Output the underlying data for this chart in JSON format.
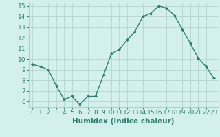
{
  "x": [
    0,
    1,
    2,
    3,
    4,
    5,
    6,
    7,
    8,
    9,
    10,
    11,
    12,
    13,
    14,
    15,
    16,
    17,
    18,
    19,
    20,
    21,
    22,
    23
  ],
  "y": [
    9.5,
    9.3,
    9.0,
    7.5,
    6.2,
    6.5,
    5.7,
    6.5,
    6.5,
    8.5,
    10.5,
    10.9,
    11.8,
    12.6,
    14.0,
    14.3,
    15.0,
    14.8,
    14.1,
    12.8,
    11.5,
    10.1,
    9.3,
    8.2
  ],
  "line_color": "#2e7d6e",
  "marker": "D",
  "marker_size": 2.0,
  "bg_color": "#d4f0ed",
  "grid_color": "#b0d0cb",
  "xlabel": "Humidex (Indice chaleur)",
  "ylim_min": 6,
  "ylim_max": 15,
  "xlim_min": 0,
  "xlim_max": 23,
  "yticks": [
    6,
    7,
    8,
    9,
    10,
    11,
    12,
    13,
    14,
    15
  ],
  "xticks": [
    0,
    1,
    2,
    3,
    4,
    5,
    6,
    7,
    8,
    9,
    10,
    11,
    12,
    13,
    14,
    15,
    16,
    17,
    18,
    19,
    20,
    21,
    22,
    23
  ],
  "xlabel_fontsize": 7.5,
  "tick_fontsize": 6.5,
  "line_width": 1.0
}
